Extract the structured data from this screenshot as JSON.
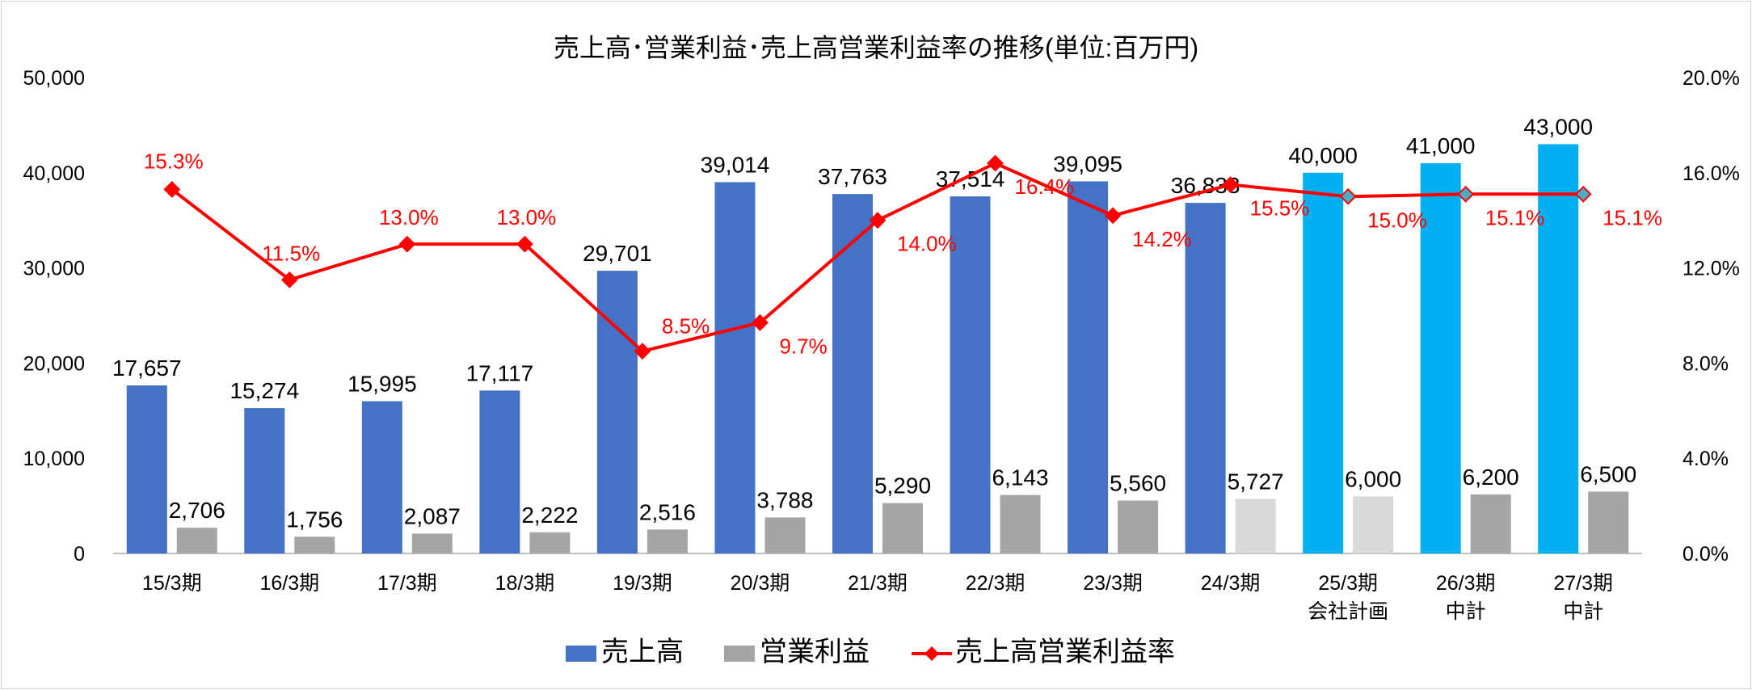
{
  "chart_data": {
    "type": "bar+line",
    "title": "売上高･営業利益･売上高営業利益率の推移(単位:百万円)",
    "categories": [
      [
        "15/3期"
      ],
      [
        "16/3期"
      ],
      [
        "17/3期"
      ],
      [
        "18/3期"
      ],
      [
        "19/3期"
      ],
      [
        "20/3期"
      ],
      [
        "21/3期"
      ],
      [
        "22/3期"
      ],
      [
        "23/3期"
      ],
      [
        "24/3期"
      ],
      [
        "25/3期",
        "会社計画"
      ],
      [
        "26/3期",
        "中計"
      ],
      [
        "27/3期",
        "中計"
      ]
    ],
    "series": [
      {
        "name": "売上高",
        "type": "bar",
        "axis": "left",
        "values": [
          17657,
          15274,
          15995,
          17117,
          29701,
          39014,
          37763,
          37514,
          39095,
          36833,
          40000,
          41000,
          43000
        ],
        "labels": [
          "17,657",
          "15,274",
          "15,995",
          "17,117",
          "29,701",
          "39,014",
          "37,763",
          "37,514",
          "39,095",
          "36,833",
          "40,000",
          "41,000",
          "43,000"
        ],
        "colors": [
          "#4472C4",
          "#4472C4",
          "#4472C4",
          "#4472C4",
          "#4472C4",
          "#4472C4",
          "#4472C4",
          "#4472C4",
          "#4472C4",
          "#4472C4",
          "#00B0F0",
          "#00B0F0",
          "#00B0F0"
        ]
      },
      {
        "name": "営業利益",
        "type": "bar",
        "axis": "left",
        "values": [
          2706,
          1756,
          2087,
          2222,
          2516,
          3788,
          5290,
          6143,
          5560,
          5727,
          6000,
          6200,
          6500
        ],
        "labels": [
          "2,706",
          "1,756",
          "2,087",
          "2,222",
          "2,516",
          "3,788",
          "5,290",
          "6,143",
          "5,560",
          "5,727",
          "6,000",
          "6,200",
          "6,500"
        ],
        "colors": [
          "#A5A5A5",
          "#A5A5A5",
          "#A5A5A5",
          "#A5A5A5",
          "#A5A5A5",
          "#A5A5A5",
          "#A5A5A5",
          "#A5A5A5",
          "#A5A5A5",
          "#D9D9D9",
          "#D9D9D9",
          "#A5A5A5",
          "#A5A5A5"
        ]
      },
      {
        "name": "売上高営業利益率",
        "type": "line",
        "axis": "right",
        "values": [
          15.3,
          11.5,
          13.0,
          13.0,
          8.5,
          9.7,
          14.0,
          16.4,
          14.2,
          15.5,
          15.0,
          15.1,
          15.1
        ],
        "labels": [
          "15.3%",
          "11.5%",
          "13.0%",
          "13.0%",
          "8.5%",
          "9.7%",
          "14.0%",
          "16.4%",
          "14.2%",
          "15.5%",
          "15.0%",
          "15.1%",
          "15.1%"
        ],
        "color": "#FF0000",
        "marker_colors": [
          "#FF0000",
          "#FF0000",
          "#FF0000",
          "#FF0000",
          "#FF0000",
          "#FF0000",
          "#FF0000",
          "#FF0000",
          "#FF0000",
          "#FF0000",
          "#4BACC6",
          "#4BACC6",
          "#4BACC6"
        ]
      }
    ],
    "y_left": {
      "min": 0,
      "max": 50000,
      "ticks": [
        "0",
        "10,000",
        "20,000",
        "30,000",
        "40,000",
        "50,000"
      ]
    },
    "y_right": {
      "min": 0,
      "max": 20,
      "ticks": [
        "0.0%",
        "4.0%",
        "8.0%",
        "12.0%",
        "16.0%",
        "20.0%"
      ]
    },
    "grid": false,
    "legend_position": "bottom"
  }
}
